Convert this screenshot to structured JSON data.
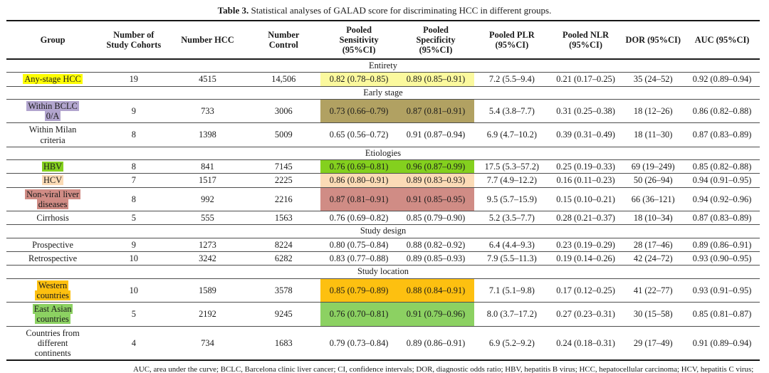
{
  "caption": {
    "label": "Table 3.",
    "text": " Statistical analyses of GALAD score for discriminating HCC in different groups."
  },
  "table": {
    "columns": [
      "Group",
      "Number of\nStudy Cohorts",
      "Number HCC",
      "Number\nControl",
      "Pooled\nSensitivity\n(95%CI)",
      "Pooled\nSpecificity\n(95%CI)",
      "Pooled PLR\n(95%CI)",
      "Pooled NLR\n(95%CI)",
      "DOR (95%CI)",
      "AUC (95%CI)"
    ],
    "col_widths": [
      "12.3%",
      "9.2%",
      "10.4%",
      "9.8%",
      "10.2%",
      "10.2%",
      "10.0%",
      "9.6%",
      "8.3%",
      "10.0%"
    ],
    "sections": [
      {
        "label": "Entirety",
        "rows": [
          {
            "group": "Any-stage HCC",
            "group_highlight": "#fdfd05",
            "cell_highlight": "#fbf99e",
            "cohorts": "19",
            "hcc": "4515",
            "control": "14,506",
            "sensitivity": "0.82 (0.78–0.85)",
            "specificity": "0.89 (0.85–0.91)",
            "plr": "7.2 (5.5–9.4)",
            "nlr": "0.21 (0.17–0.25)",
            "dor": "35 (24–52)",
            "auc": "0.92 (0.89–0.94)"
          }
        ]
      },
      {
        "label": "Early stage",
        "rows": [
          {
            "group": "Within BCLC\n0/A",
            "group_highlight": "#b2a5ce",
            "cell_highlight": "#b1a162",
            "cohorts": "9",
            "hcc": "733",
            "control": "3006",
            "sensitivity": "0.73 (0.66–0.79)",
            "specificity": "0.87 (0.81–0.91)",
            "plr": "5.4 (3.8–7.7)",
            "nlr": "0.31 (0.25–0.38)",
            "dor": "18 (12–26)",
            "auc": "0.86 (0.82–0.88)"
          },
          {
            "group": "Within Milan\ncriteria",
            "group_highlight": null,
            "cell_highlight": null,
            "cohorts": "8",
            "hcc": "1398",
            "control": "5009",
            "sensitivity": "0.65 (0.56–0.72)",
            "specificity": "0.91 (0.87–0.94)",
            "plr": "6.9 (4.7–10.2)",
            "nlr": "0.39 (0.31–0.49)",
            "dor": "18 (11–30)",
            "auc": "0.87 (0.83–0.89)"
          }
        ]
      },
      {
        "label": "Etiologies",
        "rows": [
          {
            "group": "HBV",
            "group_highlight": "#84d01e",
            "cell_highlight": "#84d01e",
            "cohorts": "8",
            "hcc": "841",
            "control": "7145",
            "sensitivity": "0.76 (0.69–0.81)",
            "specificity": "0.96 (0.87–0.99)",
            "plr": "17.5 (5.3–57.2)",
            "nlr": "0.25 (0.19–0.33)",
            "dor": "69 (19–249)",
            "auc": "0.85 (0.82–0.88)"
          },
          {
            "group": "HCV",
            "group_highlight": "#fbdbb6",
            "cell_highlight": "#fbdbb6",
            "cohorts": "7",
            "hcc": "1517",
            "control": "2225",
            "sensitivity": "0.86 (0.80–0.91)",
            "specificity": "0.89 (0.83–0.93)",
            "plr": "7.7 (4.9–12.2)",
            "nlr": "0.16 (0.11–0.23)",
            "dor": "50 (26–94)",
            "auc": "0.94 (0.91–0.95)"
          },
          {
            "group": "Non-viral liver\ndiseases",
            "group_highlight": "#d08c85",
            "cell_highlight": "#d08c85",
            "cohorts": "8",
            "hcc": "992",
            "control": "2216",
            "sensitivity": "0.87 (0.81–0.91)",
            "specificity": "0.91 (0.85–0.95)",
            "plr": "9.5 (5.7–15.9)",
            "nlr": "0.15 (0.10–0.21)",
            "dor": "66 (36–121)",
            "auc": "0.94 (0.92–0.96)"
          },
          {
            "group": "Cirrhosis",
            "group_highlight": null,
            "cell_highlight": null,
            "cohorts": "5",
            "hcc": "555",
            "control": "1563",
            "sensitivity": "0.76 (0.69–0.82)",
            "specificity": "0.85 (0.79–0.90)",
            "plr": "5.2 (3.5–7.7)",
            "nlr": "0.28 (0.21–0.37)",
            "dor": "18 (10–34)",
            "auc": "0.87 (0.83–0.89)"
          }
        ]
      },
      {
        "label": "Study design",
        "rows": [
          {
            "group": "Prospective",
            "group_highlight": null,
            "cell_highlight": null,
            "cohorts": "9",
            "hcc": "1273",
            "control": "8224",
            "sensitivity": "0.80 (0.75–0.84)",
            "specificity": "0.88 (0.82–0.92)",
            "plr": "6.4 (4.4–9.3)",
            "nlr": "0.23 (0.19–0.29)",
            "dor": "28 (17–46)",
            "auc": "0.89 (0.86–0.91)"
          },
          {
            "group": "Retrospective",
            "group_highlight": null,
            "cell_highlight": null,
            "cohorts": "10",
            "hcc": "3242",
            "control": "6282",
            "sensitivity": "0.83 (0.77–0.88)",
            "specificity": "0.89 (0.85–0.93)",
            "plr": "7.9 (5.5–11.3)",
            "nlr": "0.19 (0.14–0.26)",
            "dor": "42 (24–72)",
            "auc": "0.93 (0.90–0.95)"
          }
        ]
      },
      {
        "label": "Study location",
        "rows": [
          {
            "group": "Western\ncountries",
            "group_highlight": "#fdc010",
            "cell_highlight": "#fdc010",
            "cohorts": "10",
            "hcc": "1589",
            "control": "3578",
            "sensitivity": "0.85 (0.79–0.89)",
            "specificity": "0.88 (0.84–0.91)",
            "plr": "7.1 (5.1–9.8)",
            "nlr": "0.17 (0.12–0.25)",
            "dor": "41 (22–77)",
            "auc": "0.93 (0.91–0.95)"
          },
          {
            "group": "East Asian\ncountries",
            "group_highlight": "#8cd162",
            "cell_highlight": "#8cd162",
            "cohorts": "5",
            "hcc": "2192",
            "control": "9245",
            "sensitivity": "0.76 (0.70–0.81)",
            "specificity": "0.91 (0.79–0.96)",
            "plr": "8.0 (3.7–17.2)",
            "nlr": "0.27 (0.23–0.31)",
            "dor": "30 (15–58)",
            "auc": "0.85 (0.81–0.87)"
          },
          {
            "group": "Countries from\ndifferent\ncontinents",
            "group_highlight": null,
            "cell_highlight": null,
            "cohorts": "4",
            "hcc": "734",
            "control": "1683",
            "sensitivity": "0.79 (0.73–0.84)",
            "specificity": "0.89 (0.86–0.91)",
            "plr": "6.9 (5.2–9.2)",
            "nlr": "0.24 (0.18–0.31)",
            "dor": "29 (17–49)",
            "auc": "0.91 (0.89–0.94)"
          }
        ]
      }
    ]
  },
  "footnote": "AUC, area under the curve; BCLC, Barcelona clinic liver cancer; CI, confidence intervals; DOR, diagnostic odds ratio; HBV, hepatitis B virus; HCC, hepatocellular carcinoma; HCV, hepatitis C virus; NLR, negative likelihood ratio; PLR, positive likelihood ratio."
}
